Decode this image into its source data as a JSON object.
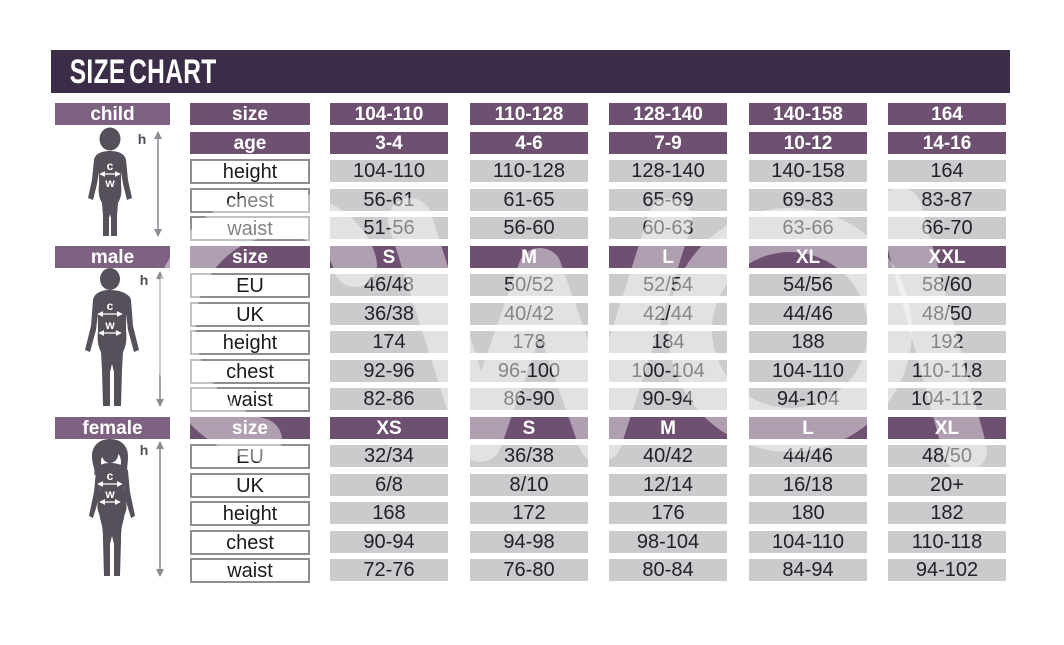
{
  "title": "SIZE CHART",
  "colors": {
    "title_bar": "#3b2d47",
    "section_chip": "#7d6181",
    "header_chip": "#6e5071",
    "data_cell": "#cbcacd",
    "cell_text": "#232127",
    "silhouette": "#55505a"
  },
  "chart_data": [
    {
      "type": "table",
      "section": "child",
      "figure_labels": {
        "height": "h",
        "chest": "c",
        "waist": "w"
      },
      "header_rows": [
        {
          "label": "size",
          "values": [
            "104-110",
            "110-128",
            "128-140",
            "140-158",
            "164"
          ]
        },
        {
          "label": "age",
          "values": [
            "3-4",
            "4-6",
            "7-9",
            "10-12",
            "14-16"
          ]
        }
      ],
      "rows": [
        {
          "label": "height",
          "values": [
            "104-110",
            "110-128",
            "128-140",
            "140-158",
            "164"
          ]
        },
        {
          "label": "chest",
          "values": [
            "56-61",
            "61-65",
            "65-69",
            "69-83",
            "83-87"
          ]
        },
        {
          "label": "waist",
          "values": [
            "51-56",
            "56-60",
            "60-63",
            "63-66",
            "66-70"
          ]
        }
      ]
    },
    {
      "type": "table",
      "section": "male",
      "figure_labels": {
        "height": "h",
        "chest": "c",
        "waist": "w"
      },
      "header_rows": [
        {
          "label": "size",
          "values": [
            "S",
            "M",
            "L",
            "XL",
            "XXL"
          ]
        }
      ],
      "rows": [
        {
          "label": "EU",
          "values": [
            "46/48",
            "50/52",
            "52/54",
            "54/56",
            "58/60"
          ]
        },
        {
          "label": "UK",
          "values": [
            "36/38",
            "40/42",
            "42/44",
            "44/46",
            "48/50"
          ]
        },
        {
          "label": "height",
          "values": [
            "174",
            "178",
            "184",
            "188",
            "192"
          ]
        },
        {
          "label": "chest",
          "values": [
            "92-96",
            "96-100",
            "100-104",
            "104-110",
            "110-118"
          ]
        },
        {
          "label": "waist",
          "values": [
            "82-86",
            "86-90",
            "90-94",
            "94-104",
            "104-112"
          ]
        }
      ]
    },
    {
      "type": "table",
      "section": "female",
      "figure_labels": {
        "height": "h",
        "chest": "c",
        "waist": "w"
      },
      "header_rows": [
        {
          "label": "size",
          "values": [
            "XS",
            "S",
            "M",
            "L",
            "XL"
          ]
        }
      ],
      "rows": [
        {
          "label": "EU",
          "values": [
            "32/34",
            "36/38",
            "40/42",
            "44/46",
            "48/50"
          ]
        },
        {
          "label": "UK",
          "values": [
            "6/8",
            "8/10",
            "12/14",
            "16/18",
            "20+"
          ]
        },
        {
          "label": "height",
          "values": [
            "168",
            "172",
            "176",
            "180",
            "182"
          ]
        },
        {
          "label": "chest",
          "values": [
            "90-94",
            "94-98",
            "98-104",
            "104-110",
            "110-118"
          ]
        },
        {
          "label": "waist",
          "values": [
            "72-76",
            "76-80",
            "80-84",
            "84-94",
            "94-102"
          ]
        }
      ]
    }
  ]
}
